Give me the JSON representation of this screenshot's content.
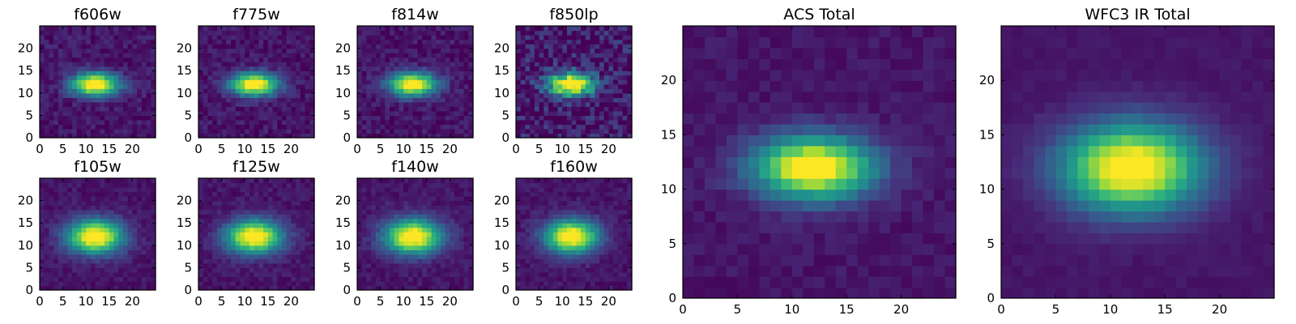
{
  "chart_data": [
    {
      "type": "heatmap",
      "title": "f606w",
      "colormap": "viridis",
      "xlim": [
        0,
        25
      ],
      "ylim": [
        0,
        25
      ],
      "xticks": [
        0,
        5,
        10,
        15,
        20
      ],
      "yticks": [
        0,
        5,
        10,
        15,
        20
      ],
      "xtick_labels": [
        "0",
        "5",
        "10",
        "15",
        "20"
      ],
      "ytick_labels": [
        "0",
        "5",
        "10",
        "15",
        "20"
      ],
      "source": {
        "center": [
          12,
          12
        ],
        "sigma": [
          3.6,
          1.8
        ],
        "noise": 0.07,
        "seed": 11
      }
    },
    {
      "type": "heatmap",
      "title": "f775w",
      "colormap": "viridis",
      "xlim": [
        0,
        25
      ],
      "ylim": [
        0,
        25
      ],
      "xticks": [
        0,
        5,
        10,
        15,
        20
      ],
      "yticks": [
        0,
        5,
        10,
        15,
        20
      ],
      "xtick_labels": [
        "0",
        "5",
        "10",
        "15",
        "20"
      ],
      "ytick_labels": [
        "0",
        "5",
        "10",
        "15",
        "20"
      ],
      "source": {
        "center": [
          12,
          12
        ],
        "sigma": [
          3.6,
          1.8
        ],
        "noise": 0.07,
        "seed": 23
      }
    },
    {
      "type": "heatmap",
      "title": "f814w",
      "colormap": "viridis",
      "xlim": [
        0,
        25
      ],
      "ylim": [
        0,
        25
      ],
      "xticks": [
        0,
        5,
        10,
        15,
        20
      ],
      "yticks": [
        0,
        5,
        10,
        15,
        20
      ],
      "xtick_labels": [
        "0",
        "5",
        "10",
        "15",
        "20"
      ],
      "ytick_labels": [
        "0",
        "5",
        "10",
        "15",
        "20"
      ],
      "source": {
        "center": [
          12,
          12
        ],
        "sigma": [
          3.6,
          1.8
        ],
        "noise": 0.07,
        "seed": 37
      }
    },
    {
      "type": "heatmap",
      "title": "f850lp",
      "colormap": "viridis",
      "xlim": [
        0,
        25
      ],
      "ylim": [
        0,
        25
      ],
      "xticks": [
        0,
        5,
        10,
        15,
        20
      ],
      "yticks": [
        0,
        5,
        10,
        15,
        20
      ],
      "xtick_labels": [
        "0",
        "5",
        "10",
        "15",
        "20"
      ],
      "ytick_labels": [
        "0",
        "5",
        "10",
        "15",
        "20"
      ],
      "source": {
        "center": [
          12,
          12
        ],
        "sigma": [
          3.6,
          1.9
        ],
        "noise": 0.16,
        "seed": 41
      }
    },
    {
      "type": "heatmap",
      "title": "f105w",
      "colormap": "viridis",
      "xlim": [
        0,
        25
      ],
      "ylim": [
        0,
        25
      ],
      "xticks": [
        0,
        5,
        10,
        15,
        20
      ],
      "yticks": [
        0,
        5,
        10,
        15,
        20
      ],
      "xtick_labels": [
        "0",
        "5",
        "10",
        "15",
        "20"
      ],
      "ytick_labels": [
        "0",
        "5",
        "10",
        "15",
        "20"
      ],
      "source": {
        "center": [
          12,
          12
        ],
        "sigma": [
          4.2,
          2.6
        ],
        "noise": 0.05,
        "seed": 53
      }
    },
    {
      "type": "heatmap",
      "title": "f125w",
      "colormap": "viridis",
      "xlim": [
        0,
        25
      ],
      "ylim": [
        0,
        25
      ],
      "xticks": [
        0,
        5,
        10,
        15,
        20
      ],
      "yticks": [
        0,
        5,
        10,
        15,
        20
      ],
      "xtick_labels": [
        "0",
        "5",
        "10",
        "15",
        "20"
      ],
      "ytick_labels": [
        "0",
        "5",
        "10",
        "15",
        "20"
      ],
      "source": {
        "center": [
          12,
          12
        ],
        "sigma": [
          4.2,
          2.6
        ],
        "noise": 0.05,
        "seed": 67
      }
    },
    {
      "type": "heatmap",
      "title": "f140w",
      "colormap": "viridis",
      "xlim": [
        0,
        25
      ],
      "ylim": [
        0,
        25
      ],
      "xticks": [
        0,
        5,
        10,
        15,
        20
      ],
      "yticks": [
        0,
        5,
        10,
        15,
        20
      ],
      "xtick_labels": [
        "0",
        "5",
        "10",
        "15",
        "20"
      ],
      "ytick_labels": [
        "0",
        "5",
        "10",
        "15",
        "20"
      ],
      "source": {
        "center": [
          12,
          12
        ],
        "sigma": [
          4.3,
          2.7
        ],
        "noise": 0.05,
        "seed": 79
      }
    },
    {
      "type": "heatmap",
      "title": "f160w",
      "colormap": "viridis",
      "xlim": [
        0,
        25
      ],
      "ylim": [
        0,
        25
      ],
      "xticks": [
        0,
        5,
        10,
        15,
        20
      ],
      "yticks": [
        0,
        5,
        10,
        15,
        20
      ],
      "xtick_labels": [
        "0",
        "5",
        "10",
        "15",
        "20"
      ],
      "ytick_labels": [
        "0",
        "5",
        "10",
        "15",
        "20"
      ],
      "source": {
        "center": [
          12,
          12
        ],
        "sigma": [
          4.0,
          2.6
        ],
        "noise": 0.05,
        "seed": 83
      }
    },
    {
      "type": "heatmap",
      "title": "ACS Total",
      "colormap": "viridis",
      "xlim": [
        0,
        25
      ],
      "ylim": [
        0,
        25
      ],
      "xticks": [
        0,
        5,
        10,
        15,
        20
      ],
      "yticks": [
        0,
        5,
        10,
        15,
        20
      ],
      "xtick_labels": [
        "0",
        "5",
        "10",
        "15",
        "20"
      ],
      "ytick_labels": [
        "0",
        "5",
        "10",
        "15",
        "20"
      ],
      "source": {
        "center": [
          12,
          12
        ],
        "sigma": [
          3.8,
          2.0
        ],
        "noise": 0.04,
        "seed": 97
      }
    },
    {
      "type": "heatmap",
      "title": "WFC3 IR Total",
      "colormap": "viridis",
      "xlim": [
        0,
        25
      ],
      "ylim": [
        0,
        25
      ],
      "xticks": [
        0,
        5,
        10,
        15,
        20
      ],
      "yticks": [
        0,
        5,
        10,
        15,
        20
      ],
      "xtick_labels": [
        "0",
        "5",
        "10",
        "15",
        "20"
      ],
      "ytick_labels": [
        "0",
        "5",
        "10",
        "15",
        "20"
      ],
      "source": {
        "center": [
          12,
          12
        ],
        "sigma": [
          4.4,
          2.8
        ],
        "noise": 0.02,
        "seed": 101
      }
    }
  ]
}
